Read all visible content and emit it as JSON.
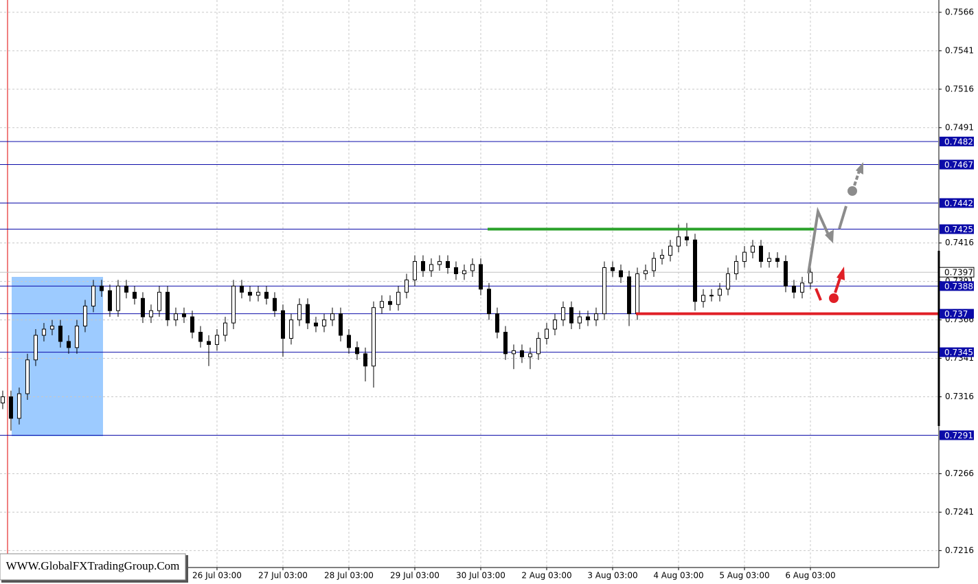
{
  "chart_data": {
    "type": "candlestick",
    "open": [
      0.7312,
      0.7316,
      0.7302,
      0.7318,
      0.734,
      0.7356,
      0.736,
      0.7362,
      0.7352,
      0.7348,
      0.7362,
      0.7375,
      0.7388,
      0.7385,
      0.7372,
      0.7388,
      0.7384,
      0.738,
      0.7368,
      0.7372,
      0.7384,
      0.7366,
      0.737,
      0.7368,
      0.7358,
      0.7352,
      0.735,
      0.7356,
      0.7364,
      0.7388,
      0.7384,
      0.7382,
      0.7384,
      0.738,
      0.7372,
      0.7354,
      0.7366,
      0.7376,
      0.7364,
      0.7362,
      0.7366,
      0.737,
      0.7356,
      0.7348,
      0.7344,
      0.7336,
      0.7374,
      0.7378,
      0.7376,
      0.7384,
      0.7392,
      0.7404,
      0.7398,
      0.7402,
      0.7404,
      0.74,
      0.7396,
      0.7398,
      0.7402,
      0.7386,
      0.737,
      0.7358,
      0.7344,
      0.7346,
      0.7342,
      0.7344,
      0.7354,
      0.736,
      0.7366,
      0.7374,
      0.7364,
      0.7368,
      0.7366,
      0.737,
      0.74,
      0.7398,
      0.7394,
      0.737,
      0.7396,
      0.7398,
      0.7406,
      0.7408,
      0.7414,
      0.742,
      0.7418,
      0.7378,
      0.7382,
      0.7382,
      0.7386,
      0.7396,
      0.7404,
      0.741,
      0.7414,
      0.7404,
      0.7406,
      0.7404,
      0.7388,
      0.7384,
      0.739
    ],
    "high": [
      0.732,
      0.732,
      0.7322,
      0.7344,
      0.736,
      0.7364,
      0.7366,
      0.7366,
      0.7356,
      0.7366,
      0.7379,
      0.7392,
      0.7392,
      0.7389,
      0.7392,
      0.7392,
      0.7388,
      0.7384,
      0.7376,
      0.7388,
      0.7388,
      0.7374,
      0.7374,
      0.7372,
      0.7362,
      0.7356,
      0.736,
      0.7368,
      0.7392,
      0.7392,
      0.7388,
      0.7388,
      0.7388,
      0.7384,
      0.7376,
      0.737,
      0.738,
      0.738,
      0.7368,
      0.737,
      0.7374,
      0.7374,
      0.736,
      0.7352,
      0.7348,
      0.7378,
      0.7382,
      0.7382,
      0.7388,
      0.7396,
      0.7408,
      0.7408,
      0.7406,
      0.7408,
      0.7408,
      0.7404,
      0.7402,
      0.7406,
      0.7406,
      0.739,
      0.7374,
      0.7362,
      0.735,
      0.735,
      0.7348,
      0.7358,
      0.7364,
      0.737,
      0.7378,
      0.7378,
      0.7372,
      0.7372,
      0.7374,
      0.7404,
      0.7404,
      0.7402,
      0.7398,
      0.74,
      0.7402,
      0.741,
      0.7412,
      0.7418,
      0.7428,
      0.7429,
      0.7422,
      0.7386,
      0.7386,
      0.739,
      0.74,
      0.7408,
      0.7414,
      0.7418,
      0.7418,
      0.741,
      0.741,
      0.7408,
      0.7392,
      0.7394,
      0.7401
    ],
    "low": [
      0.7308,
      0.7294,
      0.7298,
      0.7314,
      0.7336,
      0.7352,
      0.7356,
      0.7348,
      0.7344,
      0.7344,
      0.7358,
      0.7371,
      0.7381,
      0.7368,
      0.7368,
      0.738,
      0.7376,
      0.7364,
      0.7364,
      0.7368,
      0.7362,
      0.7362,
      0.7364,
      0.7354,
      0.7348,
      0.7336,
      0.7346,
      0.7352,
      0.736,
      0.738,
      0.7378,
      0.7378,
      0.7376,
      0.7368,
      0.7342,
      0.735,
      0.7362,
      0.736,
      0.7358,
      0.7358,
      0.7362,
      0.7352,
      0.7344,
      0.734,
      0.7326,
      0.7322,
      0.737,
      0.7372,
      0.7372,
      0.738,
      0.7388,
      0.7394,
      0.7394,
      0.7398,
      0.7396,
      0.7392,
      0.7392,
      0.7394,
      0.7382,
      0.7366,
      0.7354,
      0.734,
      0.7334,
      0.7338,
      0.7334,
      0.734,
      0.735,
      0.7356,
      0.7362,
      0.736,
      0.736,
      0.7362,
      0.7362,
      0.7366,
      0.7394,
      0.739,
      0.7362,
      0.7366,
      0.7392,
      0.7394,
      0.7402,
      0.7404,
      0.741,
      0.7414,
      0.7372,
      0.7374,
      0.7378,
      0.7378,
      0.7382,
      0.7392,
      0.74,
      0.7406,
      0.74,
      0.74,
      0.74,
      0.7384,
      0.738,
      0.738,
      0.7386
    ],
    "close": [
      0.7316,
      0.7302,
      0.7318,
      0.734,
      0.7356,
      0.736,
      0.7362,
      0.7352,
      0.7348,
      0.7362,
      0.7375,
      0.7388,
      0.7385,
      0.7372,
      0.7388,
      0.7384,
      0.738,
      0.7368,
      0.7372,
      0.7384,
      0.7366,
      0.737,
      0.7368,
      0.7358,
      0.7352,
      0.735,
      0.7356,
      0.7364,
      0.7388,
      0.7384,
      0.7382,
      0.7384,
      0.738,
      0.7372,
      0.7354,
      0.7366,
      0.7376,
      0.7364,
      0.7362,
      0.7366,
      0.737,
      0.7356,
      0.7348,
      0.7344,
      0.7336,
      0.7374,
      0.7378,
      0.7376,
      0.7384,
      0.7392,
      0.7404,
      0.7398,
      0.7402,
      0.7404,
      0.74,
      0.7396,
      0.7398,
      0.7402,
      0.7386,
      0.737,
      0.7358,
      0.7344,
      0.7346,
      0.7342,
      0.7344,
      0.7354,
      0.736,
      0.7366,
      0.7374,
      0.7364,
      0.7368,
      0.7366,
      0.737,
      0.74,
      0.7398,
      0.7394,
      0.737,
      0.7396,
      0.7398,
      0.7406,
      0.7408,
      0.7414,
      0.742,
      0.7418,
      0.7378,
      0.7382,
      0.7382,
      0.7386,
      0.7396,
      0.7404,
      0.741,
      0.7414,
      0.7404,
      0.7406,
      0.7404,
      0.7388,
      0.7384,
      0.739,
      0.7397
    ],
    "xlim": [
      -0.33,
      113.5
    ],
    "ylim": [
      0.7205,
      0.7574
    ],
    "xticks": [
      {
        "value": 26,
        "label": "26 Jul 03:00"
      },
      {
        "value": 34,
        "label": "27 Jul 03:00"
      },
      {
        "value": 42,
        "label": "28 Jul 03:00"
      },
      {
        "value": 50,
        "label": "29 Jul 03:00"
      },
      {
        "value": 58,
        "label": "30 Jul 03:00"
      },
      {
        "value": 66,
        "label": "2 Aug 03:00"
      },
      {
        "value": 74,
        "label": "3 Aug 03:00"
      },
      {
        "value": 82,
        "label": "4 Aug 03:00"
      },
      {
        "value": 90,
        "label": "5 Aug 03:00"
      },
      {
        "value": 98,
        "label": "6 Aug 03:00"
      }
    ],
    "yticks": [
      0.7566,
      0.7541,
      0.7516,
      0.7491,
      0.7416,
      0.7391,
      0.7366,
      0.7341,
      0.7316,
      0.7266,
      0.7241,
      0.7216
    ],
    "levels": [
      0.7482,
      0.7467,
      0.7442,
      0.7425,
      0.7388,
      0.737,
      0.7345,
      0.7291
    ],
    "level_color": "#0b0ba8",
    "current_price": 0.7397,
    "grid": true
  },
  "watermark": "WWW.GlobalFXTradingGroup.Com"
}
